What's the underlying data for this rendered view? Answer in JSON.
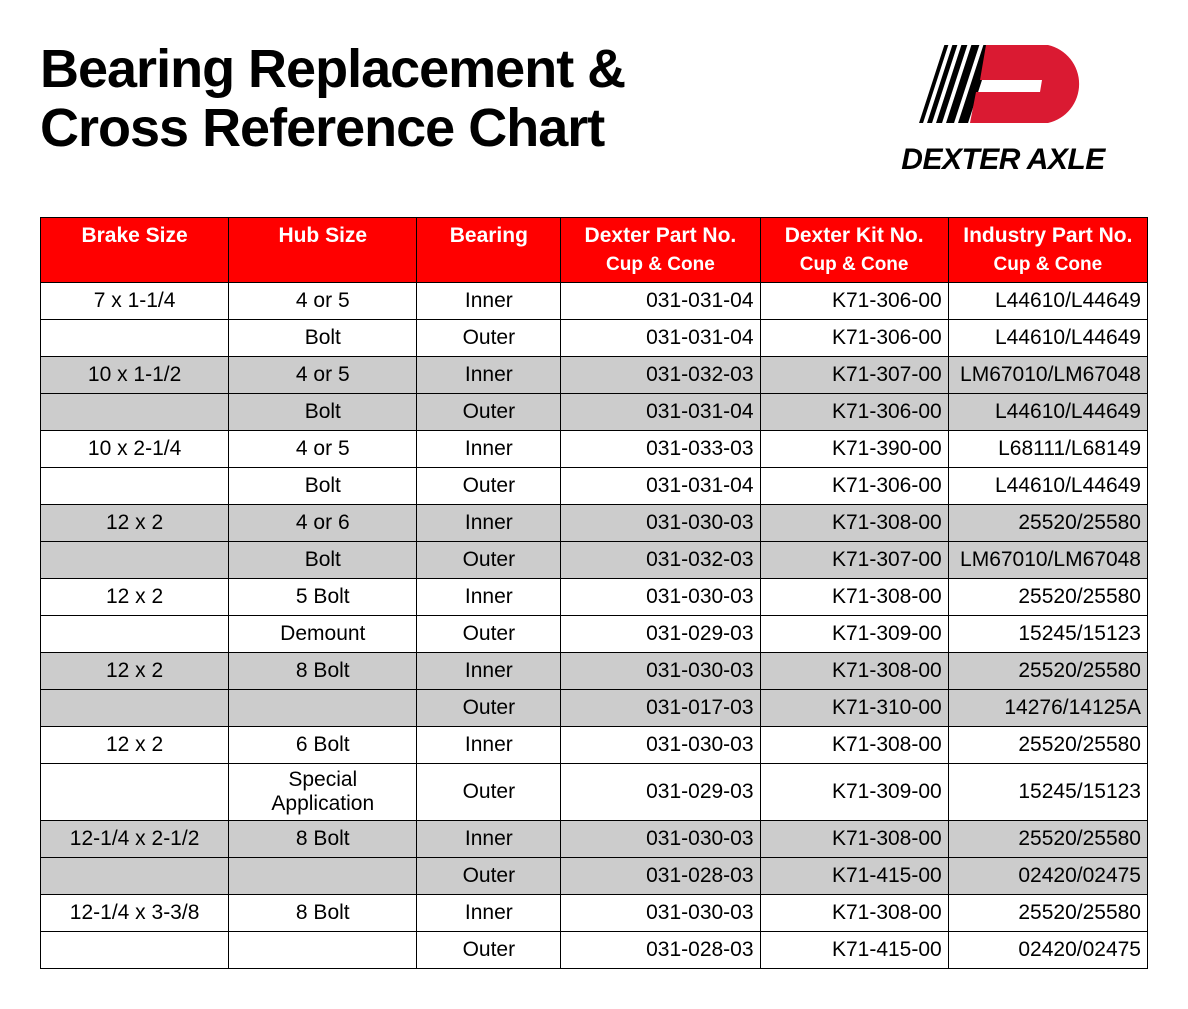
{
  "title_line1": "Bearing Replacement &",
  "title_line2": "Cross Reference Chart",
  "logo_text": "DEXTER AXLE",
  "colors": {
    "header_bg": "#ff0000",
    "header_text": "#ffffff",
    "shade_bg": "#cccccc",
    "border": "#000000",
    "logo_red": "#da1a32"
  },
  "headers": {
    "col1": "Brake Size",
    "col2": "Hub Size",
    "col3": "Bearing",
    "col4": "Dexter Part No.",
    "col5": "Dexter Kit No.",
    "col6": "Industry Part No.",
    "sub": "Cup & Cone"
  },
  "rows": [
    {
      "shade": false,
      "brake": "7 x 1-1/4",
      "hub": "4 or 5",
      "bearing": "Inner",
      "part": "031-031-04",
      "kit": "K71-306-00",
      "ind": "L44610/L44649"
    },
    {
      "shade": false,
      "brake": "",
      "hub": "Bolt",
      "bearing": "Outer",
      "part": "031-031-04",
      "kit": "K71-306-00",
      "ind": "L44610/L44649"
    },
    {
      "shade": true,
      "brake": "10 x 1-1/2",
      "hub": "4 or 5",
      "bearing": "Inner",
      "part": "031-032-03",
      "kit": "K71-307-00",
      "ind": "LM67010/LM67048"
    },
    {
      "shade": true,
      "brake": "",
      "hub": "Bolt",
      "bearing": "Outer",
      "part": "031-031-04",
      "kit": "K71-306-00",
      "ind": "L44610/L44649"
    },
    {
      "shade": false,
      "brake": "10 x 2-1/4",
      "hub": "4 or 5",
      "bearing": "Inner",
      "part": "031-033-03",
      "kit": "K71-390-00",
      "ind": "L68111/L68149"
    },
    {
      "shade": false,
      "brake": "",
      "hub": "Bolt",
      "bearing": "Outer",
      "part": "031-031-04",
      "kit": "K71-306-00",
      "ind": "L44610/L44649"
    },
    {
      "shade": true,
      "brake": "12 x 2",
      "hub": "4 or 6",
      "bearing": "Inner",
      "part": "031-030-03",
      "kit": "K71-308-00",
      "ind": "25520/25580"
    },
    {
      "shade": true,
      "brake": "",
      "hub": "Bolt",
      "bearing": "Outer",
      "part": "031-032-03",
      "kit": "K71-307-00",
      "ind": "LM67010/LM67048"
    },
    {
      "shade": false,
      "brake": "12 x 2",
      "hub": "5 Bolt",
      "bearing": "Inner",
      "part": "031-030-03",
      "kit": "K71-308-00",
      "ind": "25520/25580"
    },
    {
      "shade": false,
      "brake": "",
      "hub": "Demount",
      "bearing": "Outer",
      "part": "031-029-03",
      "kit": "K71-309-00",
      "ind": "15245/15123"
    },
    {
      "shade": true,
      "brake": "12 x 2",
      "hub": "8 Bolt",
      "bearing": "Inner",
      "part": "031-030-03",
      "kit": "K71-308-00",
      "ind": "25520/25580"
    },
    {
      "shade": true,
      "brake": "",
      "hub": "",
      "bearing": "Outer",
      "part": "031-017-03",
      "kit": "K71-310-00",
      "ind": "14276/14125A"
    },
    {
      "shade": false,
      "brake": "12 x 2",
      "hub": "6 Bolt",
      "bearing": "Inner",
      "part": "031-030-03",
      "kit": "K71-308-00",
      "ind": "25520/25580"
    },
    {
      "shade": false,
      "brake": "",
      "hub": "Special Application",
      "bearing": "Outer",
      "part": "031-029-03",
      "kit": "K71-309-00",
      "ind": "15245/15123"
    },
    {
      "shade": true,
      "brake": "12-1/4 x 2-1/2",
      "hub": "8 Bolt",
      "bearing": "Inner",
      "part": "031-030-03",
      "kit": "K71-308-00",
      "ind": "25520/25580"
    },
    {
      "shade": true,
      "brake": "",
      "hub": "",
      "bearing": "Outer",
      "part": "031-028-03",
      "kit": "K71-415-00",
      "ind": "02420/02475"
    },
    {
      "shade": false,
      "brake": "12-1/4 x 3-3/8",
      "hub": "8 Bolt",
      "bearing": "Inner",
      "part": "031-030-03",
      "kit": "K71-308-00",
      "ind": "25520/25580"
    },
    {
      "shade": false,
      "brake": "",
      "hub": "",
      "bearing": "Outer",
      "part": "031-028-03",
      "kit": "K71-415-00",
      "ind": "02420/02475"
    }
  ]
}
